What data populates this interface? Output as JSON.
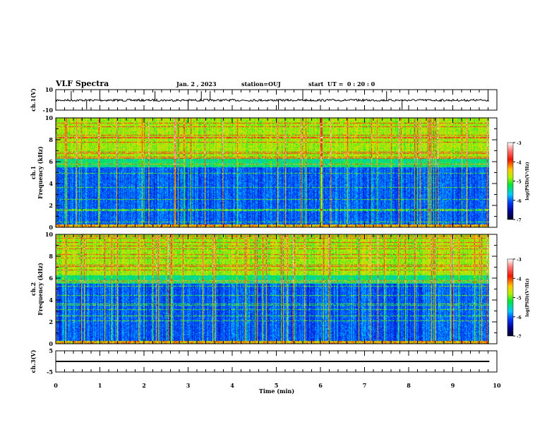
{
  "header": {
    "title": "VLF Spectra",
    "date": "Jan. 2 , 2023",
    "station": "station=OUJ",
    "start": "start  UT =  0 : 20 : 0"
  },
  "chart_data": [
    {
      "type": "line",
      "name": "ch1-waveform",
      "ylabel": "ch.1(V)",
      "ylim": [
        -10,
        10
      ],
      "yticks": [
        "10",
        "-10"
      ],
      "baseline": 0,
      "spikes_min": [
        0.35,
        0.7,
        1.0,
        2.25,
        3.0,
        3.3,
        3.5,
        5.05,
        5.6,
        7.5,
        7.85,
        9.8
      ]
    },
    {
      "type": "heatmap",
      "name": "ch1-spectrogram",
      "ylabel": "ch.1\nFrequency (kHz)",
      "ylim": [
        0,
        10
      ],
      "yticks": [
        "0",
        "2",
        "4",
        "6",
        "8",
        "10"
      ],
      "xlim": [
        0,
        9.83
      ],
      "high_band_kHz": [
        6,
        10
      ],
      "colorbar": {
        "label": "log(PSD)(V²/Hz)",
        "range": [
          -7,
          -3
        ],
        "ticks": [
          "-3",
          "-4",
          "-5",
          "-6",
          "-7"
        ]
      }
    },
    {
      "type": "heatmap",
      "name": "ch2-spectrogram",
      "ylabel": "ch.2\nFrequency (kHz)",
      "ylim": [
        0,
        10
      ],
      "yticks": [
        "0",
        "2",
        "4",
        "6",
        "8",
        "10"
      ],
      "xlim": [
        0,
        9.83
      ],
      "high_band_kHz": [
        6,
        10
      ],
      "colorbar": {
        "label": "log(PSD)(V²/Hz)",
        "range": [
          -7,
          -3
        ],
        "ticks": [
          "-3",
          "-4",
          "-5",
          "-6",
          "-7"
        ]
      }
    },
    {
      "type": "line",
      "name": "ch3-waveform",
      "ylabel": "ch.3(V)",
      "ylim": [
        -5,
        5
      ],
      "yticks": [
        "5",
        "-5"
      ],
      "constant": 0
    }
  ],
  "xaxis": {
    "label": "Time  (min)",
    "ticks": [
      "0",
      "1",
      "2",
      "3",
      "4",
      "5",
      "6",
      "7",
      "8",
      "9",
      "10"
    ],
    "range": [
      0,
      10
    ]
  }
}
